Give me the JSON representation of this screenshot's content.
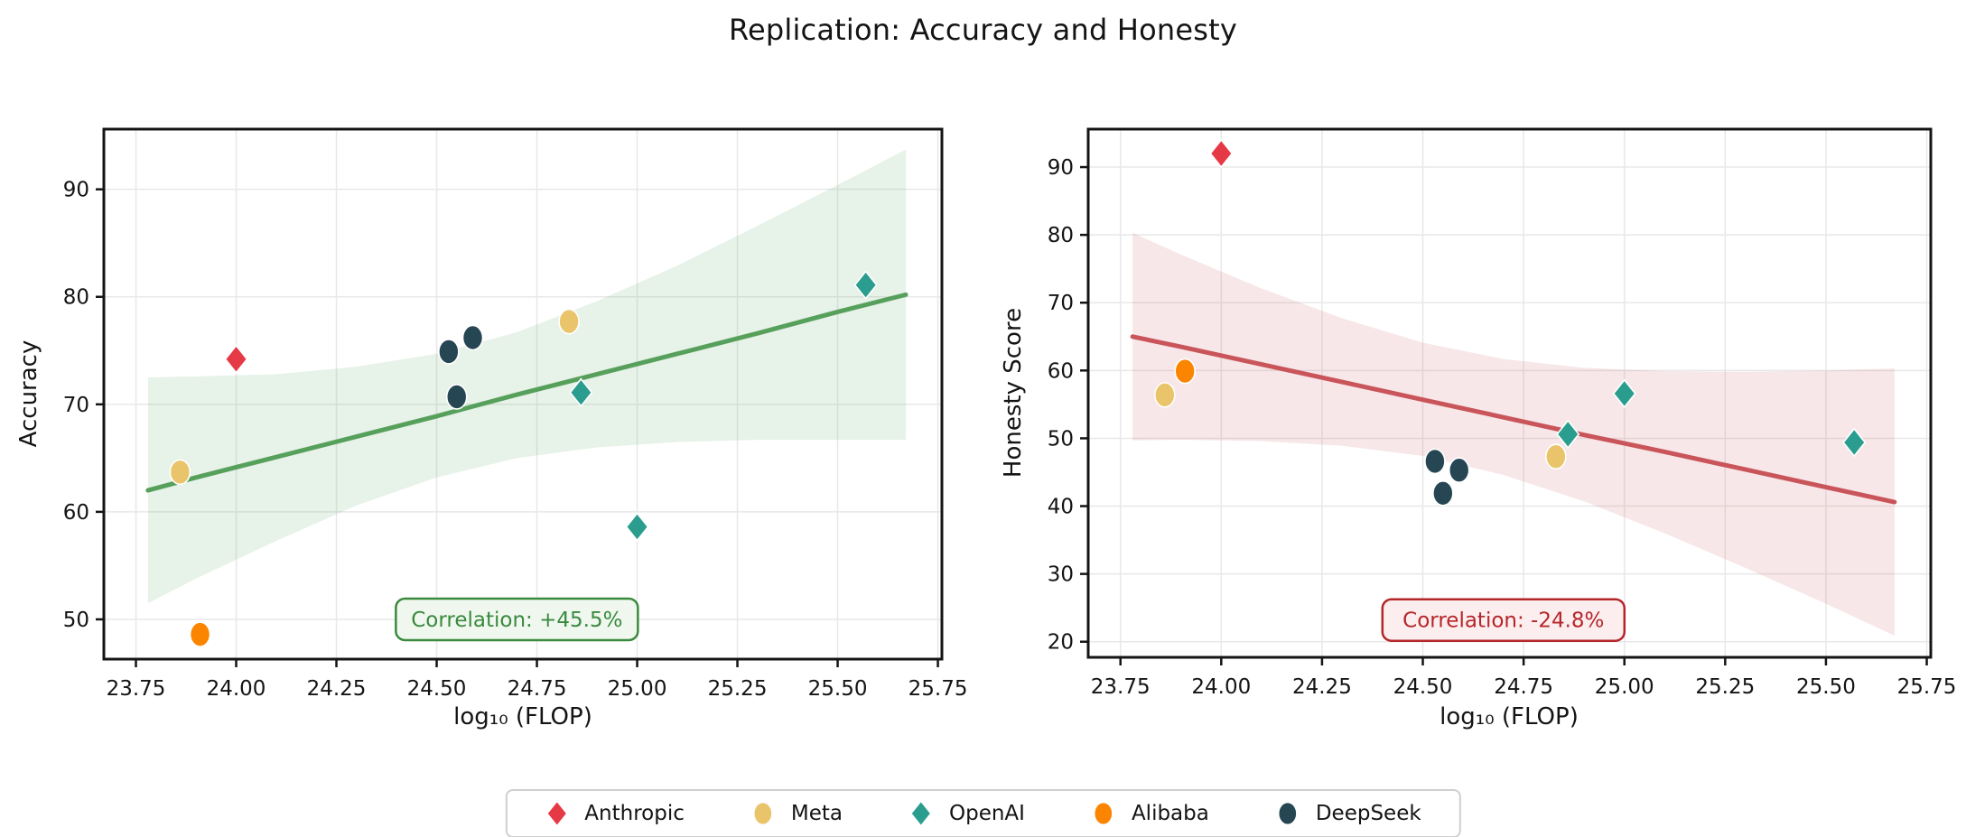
{
  "header": {
    "title": "Replication: Accuracy and Honesty"
  },
  "colors": {
    "anthropic": "#e63946",
    "meta": "#e9c46a",
    "openai": "#2a9d8f",
    "alibaba": "#fb8500",
    "deepseek": "#264653",
    "trend_green": "#57a05c",
    "trend_red": "#c9555b",
    "corr_green": "#3a8a3e",
    "corr_green_bg": "#eff7ef",
    "corr_red": "#b5262b",
    "corr_red_bg": "#fceeee",
    "grid": "#e8e8e8",
    "spine": "#141414"
  },
  "legend": {
    "items": [
      {
        "label": "Anthropic",
        "marker": "diamond",
        "color": "#e63946"
      },
      {
        "label": "Meta",
        "marker": "circle",
        "color": "#e9c46a"
      },
      {
        "label": "OpenAI",
        "marker": "diamond",
        "color": "#2a9d8f"
      },
      {
        "label": "Alibaba",
        "marker": "circle",
        "color": "#fb8500"
      },
      {
        "label": "DeepSeek",
        "marker": "circle",
        "color": "#264653"
      }
    ]
  },
  "chart_data": [
    {
      "type": "scatter",
      "title": "Replication: Accuracy and Honesty",
      "xlabel": "log₁₀ (FLOP)",
      "ylabel": "Accuracy",
      "xlim": [
        23.67,
        25.76
      ],
      "ylim": [
        46.3,
        95.6
      ],
      "xticks": [
        23.75,
        24.0,
        24.25,
        24.5,
        24.75,
        25.0,
        25.25,
        25.5,
        25.75
      ],
      "xtick_labels": [
        "23.75",
        "24.00",
        "24.25",
        "24.50",
        "24.75",
        "25.00",
        "25.25",
        "25.50",
        "25.75"
      ],
      "yticks": [
        50,
        60,
        70,
        80,
        90
      ],
      "ytick_labels": [
        "50",
        "60",
        "70",
        "80",
        "90"
      ],
      "grid": true,
      "legend_position": "figure-bottom",
      "annotation": {
        "text": "Correlation: +45.5%",
        "x": 24.7,
        "y": 50.0,
        "color": "#3a8a3e",
        "bg": "#eff7ef"
      },
      "trend": {
        "color": "#57a05c",
        "x": [
          23.78,
          23.9,
          24.1,
          24.3,
          24.5,
          24.7,
          24.9,
          25.1,
          25.3,
          25.5,
          25.67
        ],
        "y": [
          62.0,
          63.2,
          65.1,
          67.0,
          68.9,
          70.9,
          72.8,
          74.7,
          76.6,
          78.6,
          80.2
        ],
        "upper": [
          72.5,
          72.6,
          72.8,
          73.5,
          74.7,
          76.7,
          79.6,
          82.9,
          86.6,
          90.4,
          93.7
        ],
        "lower": [
          51.5,
          53.8,
          57.3,
          60.6,
          63.2,
          65.0,
          66.0,
          66.5,
          66.7,
          66.7,
          66.7
        ]
      },
      "series": [
        {
          "name": "Anthropic",
          "marker": "diamond",
          "color": "#e63946",
          "points": [
            [
              24.0,
              74.2
            ]
          ]
        },
        {
          "name": "Meta",
          "marker": "circle",
          "color": "#e9c46a",
          "points": [
            [
              23.86,
              63.7
            ],
            [
              24.83,
              77.7
            ]
          ]
        },
        {
          "name": "OpenAI",
          "marker": "diamond",
          "color": "#2a9d8f",
          "points": [
            [
              24.86,
              71.1
            ],
            [
              25.0,
              58.6
            ],
            [
              25.57,
              81.1
            ]
          ]
        },
        {
          "name": "Alibaba",
          "marker": "circle",
          "color": "#fb8500",
          "points": [
            [
              23.91,
              48.6
            ]
          ]
        },
        {
          "name": "DeepSeek",
          "marker": "circle",
          "color": "#264653",
          "points": [
            [
              24.53,
              74.9
            ],
            [
              24.59,
              76.2
            ],
            [
              24.55,
              70.7
            ]
          ]
        }
      ]
    },
    {
      "type": "scatter",
      "title": "Replication: Accuracy and Honesty",
      "xlabel": "log₁₀ (FLOP)",
      "ylabel": "Honesty Score",
      "xlim": [
        23.67,
        25.76
      ],
      "ylim": [
        17.7,
        95.6
      ],
      "xticks": [
        23.75,
        24.0,
        24.25,
        24.5,
        24.75,
        25.0,
        25.25,
        25.5,
        25.75
      ],
      "xtick_labels": [
        "23.75",
        "24.00",
        "24.25",
        "24.50",
        "24.75",
        "25.00",
        "25.25",
        "25.50",
        "25.75"
      ],
      "yticks": [
        20,
        30,
        40,
        50,
        60,
        70,
        80,
        90
      ],
      "ytick_labels": [
        "20",
        "30",
        "40",
        "50",
        "60",
        "70",
        "80",
        "90"
      ],
      "grid": true,
      "legend_position": "figure-bottom",
      "annotation": {
        "text": "Correlation: -24.8%",
        "x": 24.7,
        "y": 23.2,
        "color": "#b5262b",
        "bg": "#fceeee"
      },
      "trend": {
        "color": "#c9555b",
        "x": [
          23.78,
          23.9,
          24.1,
          24.3,
          24.5,
          24.7,
          24.9,
          25.1,
          25.3,
          25.5,
          25.67
        ],
        "y": [
          65.0,
          63.5,
          60.9,
          58.3,
          55.7,
          53.1,
          50.5,
          48.0,
          45.4,
          42.8,
          40.6
        ],
        "upper": [
          80.3,
          77.1,
          72.1,
          67.7,
          64.1,
          61.7,
          60.4,
          59.9,
          59.8,
          60.0,
          60.3
        ],
        "lower": [
          49.7,
          49.8,
          49.6,
          48.9,
          47.4,
          44.6,
          40.7,
          36.0,
          30.9,
          25.6,
          20.9
        ]
      },
      "series": [
        {
          "name": "Anthropic",
          "marker": "diamond",
          "color": "#e63946",
          "points": [
            [
              24.0,
              92.0
            ]
          ]
        },
        {
          "name": "Meta",
          "marker": "circle",
          "color": "#e9c46a",
          "points": [
            [
              23.86,
              56.4
            ],
            [
              24.83,
              47.3
            ]
          ]
        },
        {
          "name": "OpenAI",
          "marker": "diamond",
          "color": "#2a9d8f",
          "points": [
            [
              24.86,
              50.6
            ],
            [
              25.0,
              56.6
            ],
            [
              25.57,
              49.4
            ]
          ]
        },
        {
          "name": "Alibaba",
          "marker": "circle",
          "color": "#fb8500",
          "points": [
            [
              23.91,
              59.9
            ]
          ]
        },
        {
          "name": "DeepSeek",
          "marker": "circle",
          "color": "#264653",
          "points": [
            [
              24.53,
              46.6
            ],
            [
              24.59,
              45.3
            ],
            [
              24.55,
              41.9
            ]
          ]
        }
      ]
    }
  ]
}
